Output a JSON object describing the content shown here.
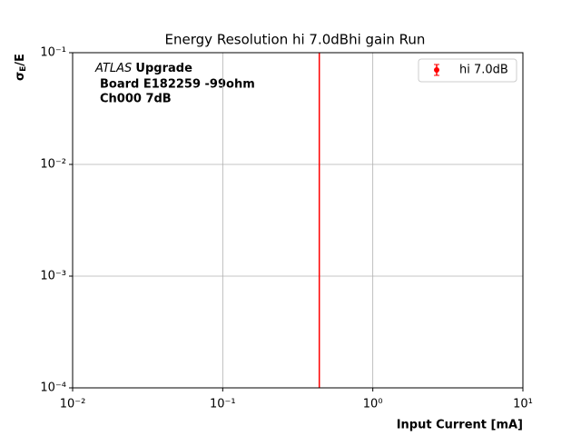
{
  "chart_data": {
    "type": "errorbar",
    "title": "Energy Resolution hi 7.0dBhi gain Run",
    "x_label": "Input Current [mA]",
    "y_label": {
      "symbol": "σ",
      "subscript": "E",
      "rest": "/E"
    },
    "annotation": {
      "italic": "ATLAS",
      "bold": "Upgrade",
      "lines": [
        "Board E182259 -99ohm",
        "Ch000 7dB"
      ]
    },
    "series": [
      {
        "name": "hi 7.0dB",
        "color": "#ff0000",
        "x": [
          0.44
        ]
      }
    ],
    "xscale": "log",
    "yscale": "log",
    "xlim": [
      0.01,
      10
    ],
    "ylim": [
      0.0001,
      0.1
    ],
    "xticks": [
      {
        "value": 0.01,
        "label": "10⁻²"
      },
      {
        "value": 0.1,
        "label": "10⁻¹"
      },
      {
        "value": 1,
        "label": "10⁰"
      },
      {
        "value": 10,
        "label": "10¹"
      }
    ],
    "yticks": [
      {
        "value": 0.0001,
        "label": "10⁻⁴"
      },
      {
        "value": 0.001,
        "label": "10⁻³"
      },
      {
        "value": 0.01,
        "label": "10⁻²"
      },
      {
        "value": 0.1,
        "label": "10⁻¹"
      }
    ],
    "grid": true,
    "legend": "upper right"
  }
}
